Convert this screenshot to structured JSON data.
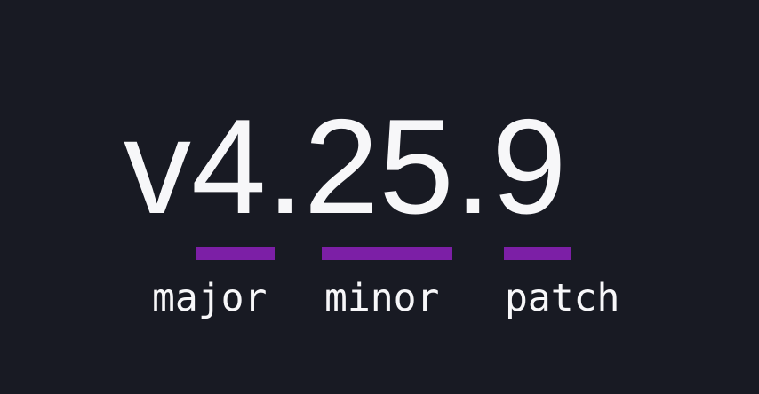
{
  "theme": {
    "background": "#181a23",
    "accent": "#7c1fa6",
    "text": "#f7f7f9"
  },
  "version": {
    "full": "v4.25.9",
    "prefix": "v",
    "major": "4",
    "minor": "25",
    "patch": "9"
  },
  "labels": {
    "major": "major",
    "minor": "minor",
    "patch": "patch"
  }
}
